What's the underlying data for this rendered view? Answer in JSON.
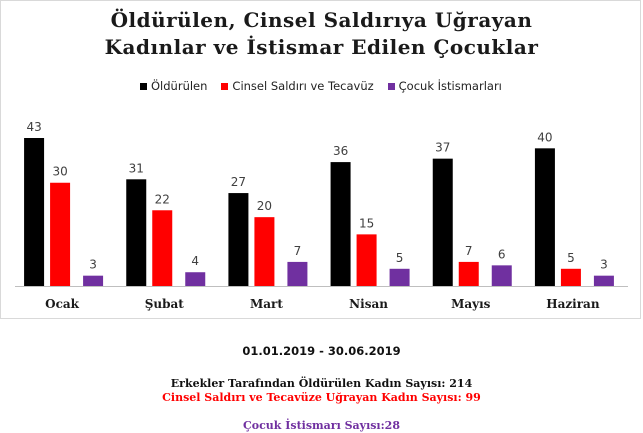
{
  "title_line1": "Öldürülen, Cinsel Saldırıya Uğrayan",
  "title_line2": "Kadınlar ve İstismar Edilen Çocuklar",
  "colors": {
    "killed": "#000000",
    "assault": "#ff0000",
    "abuse": "#7030a0",
    "axis": "#bfbfbf"
  },
  "chart_data": {
    "type": "bar",
    "categories": [
      "Ocak",
      "Şubat",
      "Mart",
      "Nisan",
      "Mayıs",
      "Haziran"
    ],
    "series": [
      {
        "name": "Öldürülen",
        "values": [
          43,
          31,
          27,
          36,
          37,
          40
        ]
      },
      {
        "name": "Cinsel Saldırı ve Tecavüz",
        "values": [
          30,
          22,
          20,
          15,
          7,
          5
        ]
      },
      {
        "name": "Çocuk İstismarları",
        "values": [
          3,
          4,
          7,
          5,
          6,
          3
        ]
      }
    ],
    "ylim": [
      0,
      43
    ],
    "legend_position": "top",
    "grid": false
  },
  "footer": {
    "date_range": "01.01.2019 - 30.06.2019",
    "stat_killed": "Erkekler Tarafından Öldürülen Kadın Sayısı: 214",
    "stat_assault": "Cinsel Saldırı ve Tecavüze Uğrayan Kadın Sayısı: 99",
    "stat_abuse": "Çocuk İstismarı Sayısı:28"
  }
}
